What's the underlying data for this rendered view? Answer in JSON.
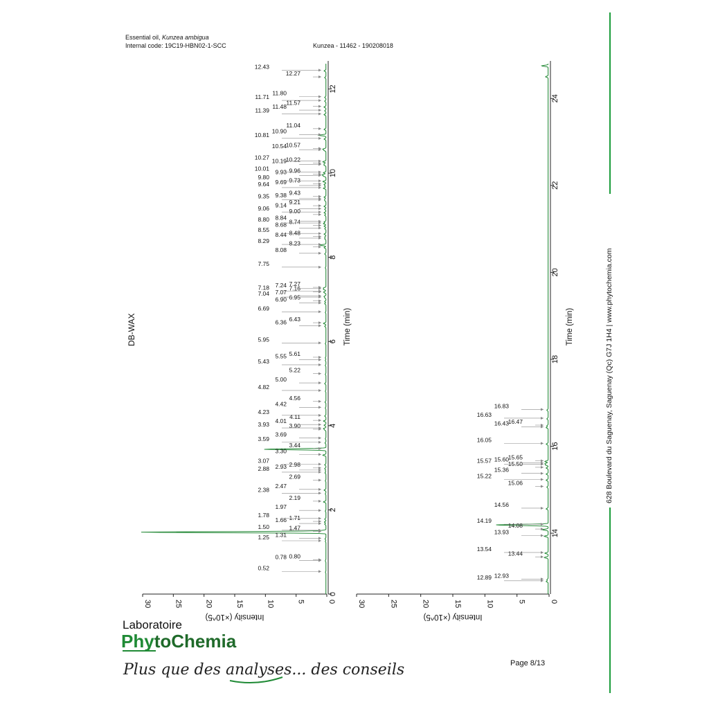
{
  "header": {
    "sample_prefix": "Essential oil, ",
    "sample_species": "Kunzea ambigua",
    "internal_code": "Internal code: 19C19-HBN02-1-SCC",
    "run_id": "Kunzea - 11462 - 190208018"
  },
  "method_label": "DB-WAX",
  "sidebar": {
    "address": "628 Boulevard du Saguenay, Saguenay (Qc)  G7J 1H4  |  www.phytochemia.com",
    "accent_color": "#1a9c3a"
  },
  "footer": {
    "logo_top": "Laboratoire",
    "logo_ph": "Ph",
    "logo_rest": "toChemia",
    "logo_y_mark": "leaf-y-logo-mark",
    "slogan": "Plus que des analyses... des conseils",
    "page_number": "Page 8/13"
  },
  "chart_data": [
    {
      "type": "line",
      "title": "",
      "orientation": "time on vertical axis, intensity on horizontal axis (reversed)",
      "xlabel": "Time (min)",
      "ylabel": "Intensity (×10^5)",
      "xlim": [
        0,
        12.6
      ],
      "ylim": [
        0,
        30
      ],
      "time_ticks": [
        0,
        2,
        4,
        6,
        8,
        10,
        12
      ],
      "intensity_ticks": [
        0,
        5,
        10,
        15,
        20,
        25,
        30
      ],
      "series_color": "#2a8c3c",
      "peak_labels": [
        "0.52",
        "0.78",
        "0.80",
        "1.25",
        "1.31",
        "1.47",
        "1.50",
        "1.66",
        "1.71",
        "1.78",
        "1.97",
        "2.19",
        "2.38",
        "2.47",
        "2.69",
        "2.88",
        "2.93",
        "2.98",
        "3.07",
        "3.30",
        "3.44",
        "3.59",
        "3.69",
        "3.90",
        "3.93",
        "4.01",
        "4.11",
        "4.23",
        "4.42",
        "4.56",
        "4.82",
        "5.00",
        "5.22",
        "5.43",
        "5.55",
        "5.61",
        "5.95",
        "6.36",
        "6.43",
        "6.69",
        "6.90",
        "6.95",
        "7.04",
        "7.07",
        "7.16",
        "7.18",
        "7.24",
        "7.27",
        "7.75",
        "8.08",
        "8.23",
        "8.29",
        "8.44",
        "8.48",
        "8.55",
        "8.68",
        "8.74",
        "8.80",
        "8.84",
        "9.00",
        "9.06",
        "9.14",
        "9.21",
        "9.35",
        "9.38",
        "9.43",
        "9.64",
        "9.69",
        "9.73",
        "9.80",
        "9.93",
        "9.96",
        "10.01",
        "10.19",
        "10.22",
        "10.27",
        "10.54",
        "10.57",
        "10.81",
        "10.90",
        "11.04",
        "11.39",
        "11.48",
        "11.57",
        "11.71",
        "11.80",
        "12.27",
        "12.43"
      ],
      "peaks": [
        {
          "x": 0.52,
          "y": 0.08
        },
        {
          "x": 0.78,
          "y": 0.06
        },
        {
          "x": 0.8,
          "y": 0.06
        },
        {
          "x": 1.25,
          "y": 0.1
        },
        {
          "x": 1.31,
          "y": 0.15
        },
        {
          "x": 1.47,
          "y": 30.5
        },
        {
          "x": 1.5,
          "y": 1.2
        },
        {
          "x": 1.66,
          "y": 0.2
        },
        {
          "x": 1.71,
          "y": 0.25
        },
        {
          "x": 1.78,
          "y": 0.2
        },
        {
          "x": 1.97,
          "y": 0.1
        },
        {
          "x": 2.19,
          "y": 0.4
        },
        {
          "x": 2.38,
          "y": 0.1
        },
        {
          "x": 2.47,
          "y": 0.3
        },
        {
          "x": 2.69,
          "y": 0.1
        },
        {
          "x": 2.88,
          "y": 0.15
        },
        {
          "x": 2.93,
          "y": 0.1
        },
        {
          "x": 2.98,
          "y": 0.2
        },
        {
          "x": 3.07,
          "y": 0.2
        },
        {
          "x": 3.3,
          "y": 0.5
        },
        {
          "x": 3.44,
          "y": 10.2
        },
        {
          "x": 3.59,
          "y": 0.15
        },
        {
          "x": 3.69,
          "y": 0.1
        },
        {
          "x": 3.9,
          "y": 0.2
        },
        {
          "x": 3.93,
          "y": 0.4
        },
        {
          "x": 4.01,
          "y": 0.3
        },
        {
          "x": 4.11,
          "y": 0.4
        },
        {
          "x": 4.23,
          "y": 0.2
        },
        {
          "x": 4.42,
          "y": 0.1
        },
        {
          "x": 4.56,
          "y": 0.15
        },
        {
          "x": 4.82,
          "y": 0.1
        },
        {
          "x": 5.0,
          "y": 0.2
        },
        {
          "x": 5.22,
          "y": 0.1
        },
        {
          "x": 5.43,
          "y": 0.1
        },
        {
          "x": 5.55,
          "y": 0.1
        },
        {
          "x": 5.61,
          "y": 0.1
        },
        {
          "x": 5.95,
          "y": 0.1
        },
        {
          "x": 6.36,
          "y": 0.2
        },
        {
          "x": 6.43,
          "y": 0.4
        },
        {
          "x": 6.69,
          "y": 0.1
        },
        {
          "x": 6.9,
          "y": 0.2
        },
        {
          "x": 6.95,
          "y": 0.2
        },
        {
          "x": 7.04,
          "y": 0.2
        },
        {
          "x": 7.07,
          "y": 0.3
        },
        {
          "x": 7.16,
          "y": 0.2
        },
        {
          "x": 7.18,
          "y": 0.3
        },
        {
          "x": 7.24,
          "y": 0.4
        },
        {
          "x": 7.27,
          "y": 0.4
        },
        {
          "x": 7.75,
          "y": 0.1
        },
        {
          "x": 8.08,
          "y": 0.2
        },
        {
          "x": 8.23,
          "y": 0.3
        },
        {
          "x": 8.29,
          "y": 1.0
        },
        {
          "x": 8.44,
          "y": 0.2
        },
        {
          "x": 8.48,
          "y": 0.2
        },
        {
          "x": 8.55,
          "y": 0.3
        },
        {
          "x": 8.68,
          "y": 0.2
        },
        {
          "x": 8.74,
          "y": 0.3
        },
        {
          "x": 8.8,
          "y": 0.4
        },
        {
          "x": 8.84,
          "y": 0.3
        },
        {
          "x": 9.0,
          "y": 0.2
        },
        {
          "x": 9.06,
          "y": 0.3
        },
        {
          "x": 9.14,
          "y": 0.2
        },
        {
          "x": 9.21,
          "y": 0.3
        },
        {
          "x": 9.35,
          "y": 0.2
        },
        {
          "x": 9.38,
          "y": 0.2
        },
        {
          "x": 9.43,
          "y": 0.3
        },
        {
          "x": 9.64,
          "y": 0.4
        },
        {
          "x": 9.69,
          "y": 0.2
        },
        {
          "x": 9.73,
          "y": 0.3
        },
        {
          "x": 9.8,
          "y": 0.5
        },
        {
          "x": 9.93,
          "y": 0.4
        },
        {
          "x": 9.96,
          "y": 0.6
        },
        {
          "x": 10.01,
          "y": 0.4
        },
        {
          "x": 10.19,
          "y": 0.3
        },
        {
          "x": 10.22,
          "y": 0.3
        },
        {
          "x": 10.27,
          "y": 0.5
        },
        {
          "x": 10.54,
          "y": 0.3
        },
        {
          "x": 10.57,
          "y": 0.5
        },
        {
          "x": 10.81,
          "y": 0.3
        },
        {
          "x": 10.9,
          "y": 1.2
        },
        {
          "x": 11.04,
          "y": 0.3
        },
        {
          "x": 11.39,
          "y": 0.3
        },
        {
          "x": 11.48,
          "y": 0.2
        },
        {
          "x": 11.57,
          "y": 0.3
        },
        {
          "x": 11.71,
          "y": 0.2
        },
        {
          "x": 11.8,
          "y": 0.2
        },
        {
          "x": 12.27,
          "y": 0.2
        },
        {
          "x": 12.43,
          "y": 0.3
        }
      ]
    },
    {
      "type": "line",
      "title": "",
      "orientation": "time on vertical axis, intensity on horizontal axis (reversed)",
      "xlabel": "Time (min)",
      "ylabel": "Intensity (×10^5)",
      "xlim": [
        12.6,
        24.8
      ],
      "ylim": [
        0,
        30
      ],
      "time_ticks": [
        14,
        16,
        18,
        20,
        22,
        24
      ],
      "intensity_ticks": [
        0,
        5,
        10,
        15,
        20,
        25,
        30
      ],
      "series_color": "#2a8c3c",
      "peak_labels": [
        "12.89",
        "12.93",
        "13.44",
        "13.54",
        "13.93",
        "14.08",
        "14.19",
        "14.56",
        "15.06",
        "15.22",
        "15.36",
        "15.50",
        "15.57",
        "15.60",
        "15.65",
        "16.05",
        "16.43",
        "16.47",
        "16.63",
        "16.83"
      ],
      "peaks": [
        {
          "x": 12.89,
          "y": 0.3
        },
        {
          "x": 12.93,
          "y": 0.2
        },
        {
          "x": 13.44,
          "y": 0.6
        },
        {
          "x": 13.54,
          "y": 0.5
        },
        {
          "x": 13.93,
          "y": 0.6
        },
        {
          "x": 14.08,
          "y": 0.9
        },
        {
          "x": 14.19,
          "y": 8.3
        },
        {
          "x": 14.56,
          "y": 0.3
        },
        {
          "x": 15.06,
          "y": 0.2
        },
        {
          "x": 15.22,
          "y": 0.3
        },
        {
          "x": 15.36,
          "y": 0.3
        },
        {
          "x": 15.5,
          "y": 0.3
        },
        {
          "x": 15.57,
          "y": 0.4
        },
        {
          "x": 15.6,
          "y": 0.5
        },
        {
          "x": 15.65,
          "y": 0.5
        },
        {
          "x": 16.05,
          "y": 0.3
        },
        {
          "x": 16.43,
          "y": 0.3
        },
        {
          "x": 16.47,
          "y": 0.2
        },
        {
          "x": 16.63,
          "y": 0.2
        },
        {
          "x": 16.83,
          "y": 0.2
        },
        {
          "x": 24.5,
          "y": 0.4
        },
        {
          "x": 24.75,
          "y": 1.0
        }
      ]
    }
  ]
}
